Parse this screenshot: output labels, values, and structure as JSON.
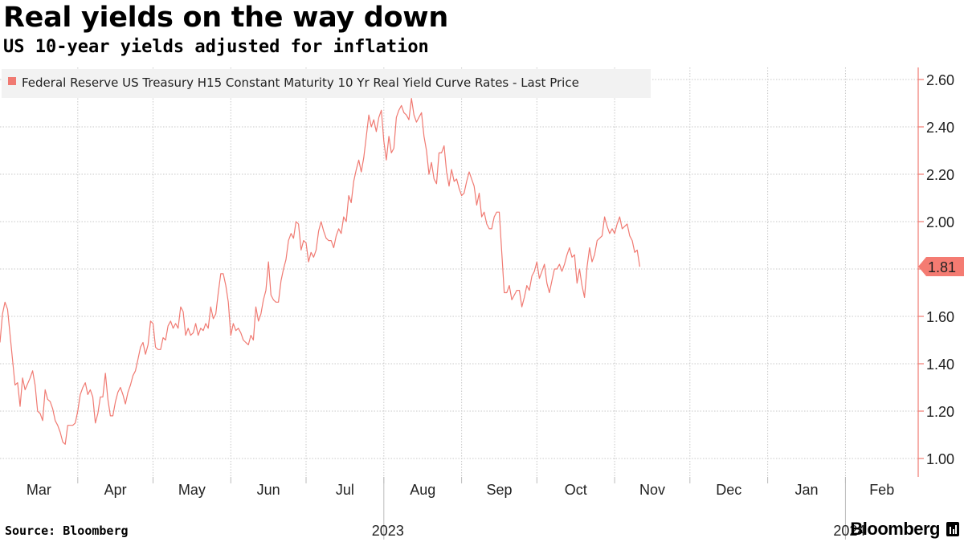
{
  "header": {
    "title": "Real yields on the way down",
    "subtitle": "US 10-year yields adjusted for inflation"
  },
  "footer": {
    "source": "Source: Bloomberg",
    "brand": "Bloomberg"
  },
  "colors": {
    "series": "#f07a72",
    "legend_bg": "#f2f2f2",
    "grid": "#c8c8c8",
    "last_badge": "#f47b72"
  },
  "chart_data": {
    "type": "line",
    "title": "Real yields on the way down",
    "subtitle": "US 10-year yields adjusted for inflation",
    "xlabel": "",
    "ylabel": "",
    "ylim": [
      0.95,
      2.65
    ],
    "grid": true,
    "legend": "top-left",
    "y_axis_side": "right",
    "y_ticks": [
      1.0,
      1.2,
      1.4,
      1.6,
      1.8,
      2.0,
      2.2,
      2.4,
      2.6
    ],
    "y_tick_labels": [
      "1.00",
      "1.20",
      "1.40",
      "1.60",
      "1.80",
      "2.00",
      "2.20",
      "2.40",
      "2.60"
    ],
    "x_months": [
      {
        "label": "Mar",
        "day": 0
      },
      {
        "label": "Apr",
        "day": 31
      },
      {
        "label": "May",
        "day": 61
      },
      {
        "label": "Jun",
        "day": 92
      },
      {
        "label": "Jul",
        "day": 122
      },
      {
        "label": "Aug",
        "day": 153
      },
      {
        "label": "Sep",
        "day": 184
      },
      {
        "label": "Oct",
        "day": 214
      },
      {
        "label": "Nov",
        "day": 245
      },
      {
        "label": "Dec",
        "day": 275
      },
      {
        "label": "Jan",
        "day": 306
      },
      {
        "label": "Feb",
        "day": 337
      }
    ],
    "x_years": [
      {
        "label": "2023",
        "day": 153
      },
      {
        "label": "2024",
        "day": 337
      }
    ],
    "x_day_range": [
      0,
      366
    ],
    "last_value_label": "1.81",
    "series": [
      {
        "name": "Federal Reserve US Treasury H15 Constant Maturity 10 Yr Real Yield Curve Rates - Last Price",
        "points": [
          [
            0,
            1.49
          ],
          [
            1,
            1.61
          ],
          [
            2,
            1.66
          ],
          [
            3,
            1.63
          ],
          [
            6,
            1.31
          ],
          [
            7,
            1.32
          ],
          [
            8,
            1.22
          ],
          [
            9,
            1.34
          ],
          [
            10,
            1.29
          ],
          [
            12,
            1.34
          ],
          [
            13,
            1.37
          ],
          [
            14,
            1.31
          ],
          [
            15,
            1.2
          ],
          [
            16,
            1.19
          ],
          [
            17,
            1.16
          ],
          [
            18,
            1.29
          ],
          [
            19,
            1.25
          ],
          [
            20,
            1.24
          ],
          [
            21,
            1.21
          ],
          [
            22,
            1.16
          ],
          [
            23,
            1.14
          ],
          [
            24,
            1.11
          ],
          [
            25,
            1.07
          ],
          [
            26,
            1.06
          ],
          [
            27,
            1.14
          ],
          [
            28,
            1.14
          ],
          [
            29,
            1.14
          ],
          [
            30,
            1.15
          ],
          [
            31,
            1.2
          ],
          [
            32,
            1.27
          ],
          [
            33,
            1.3
          ],
          [
            34,
            1.32
          ],
          [
            35,
            1.27
          ],
          [
            36,
            1.29
          ],
          [
            37,
            1.26
          ],
          [
            38,
            1.15
          ],
          [
            39,
            1.19
          ],
          [
            40,
            1.26
          ],
          [
            41,
            1.26
          ],
          [
            42,
            1.36
          ],
          [
            43,
            1.25
          ],
          [
            44,
            1.18
          ],
          [
            45,
            1.18
          ],
          [
            46,
            1.24
          ],
          [
            47,
            1.28
          ],
          [
            48,
            1.3
          ],
          [
            49,
            1.27
          ],
          [
            50,
            1.23
          ],
          [
            51,
            1.28
          ],
          [
            52,
            1.31
          ],
          [
            53,
            1.35
          ],
          [
            54,
            1.37
          ],
          [
            55,
            1.42
          ],
          [
            56,
            1.47
          ],
          [
            57,
            1.49
          ],
          [
            58,
            1.44
          ],
          [
            59,
            1.48
          ],
          [
            60,
            1.58
          ],
          [
            61,
            1.57
          ],
          [
            62,
            1.47
          ],
          [
            63,
            1.46
          ],
          [
            64,
            1.46
          ],
          [
            65,
            1.51
          ],
          [
            66,
            1.5
          ],
          [
            67,
            1.56
          ],
          [
            68,
            1.58
          ],
          [
            69,
            1.55
          ],
          [
            70,
            1.57
          ],
          [
            71,
            1.55
          ],
          [
            72,
            1.64
          ],
          [
            73,
            1.62
          ],
          [
            74,
            1.52
          ],
          [
            75,
            1.55
          ],
          [
            76,
            1.52
          ],
          [
            77,
            1.53
          ],
          [
            78,
            1.57
          ],
          [
            79,
            1.52
          ],
          [
            80,
            1.55
          ],
          [
            81,
            1.54
          ],
          [
            82,
            1.57
          ],
          [
            83,
            1.55
          ],
          [
            84,
            1.64
          ],
          [
            85,
            1.59
          ],
          [
            86,
            1.61
          ],
          [
            87,
            1.7
          ],
          [
            88,
            1.78
          ],
          [
            89,
            1.78
          ],
          [
            90,
            1.73
          ],
          [
            91,
            1.66
          ],
          [
            92,
            1.52
          ],
          [
            93,
            1.57
          ],
          [
            94,
            1.54
          ],
          [
            95,
            1.55
          ],
          [
            96,
            1.53
          ],
          [
            97,
            1.5
          ],
          [
            98,
            1.49
          ],
          [
            99,
            1.48
          ],
          [
            100,
            1.52
          ],
          [
            101,
            1.5
          ],
          [
            102,
            1.64
          ],
          [
            103,
            1.58
          ],
          [
            104,
            1.61
          ],
          [
            105,
            1.67
          ],
          [
            106,
            1.71
          ],
          [
            107,
            1.83
          ],
          [
            108,
            1.69
          ],
          [
            109,
            1.67
          ],
          [
            110,
            1.66
          ],
          [
            111,
            1.66
          ],
          [
            112,
            1.75
          ],
          [
            113,
            1.8
          ],
          [
            114,
            1.84
          ],
          [
            115,
            1.92
          ],
          [
            116,
            1.95
          ],
          [
            117,
            1.93
          ],
          [
            118,
            2.0
          ],
          [
            119,
            1.99
          ],
          [
            120,
            1.88
          ],
          [
            121,
            1.92
          ],
          [
            122,
            1.91
          ],
          [
            123,
            1.83
          ],
          [
            124,
            1.87
          ],
          [
            125,
            1.85
          ],
          [
            126,
            1.88
          ],
          [
            127,
            1.96
          ],
          [
            128,
            2.0
          ],
          [
            129,
            1.96
          ],
          [
            130,
            1.93
          ],
          [
            131,
            1.92
          ],
          [
            132,
            1.92
          ],
          [
            133,
            1.89
          ],
          [
            134,
            1.94
          ],
          [
            135,
            1.97
          ],
          [
            136,
            1.95
          ],
          [
            137,
            2.02
          ],
          [
            138,
            2.0
          ],
          [
            139,
            2.11
          ],
          [
            140,
            2.08
          ],
          [
            141,
            2.17
          ],
          [
            142,
            2.22
          ],
          [
            143,
            2.26
          ],
          [
            144,
            2.21
          ],
          [
            145,
            2.27
          ],
          [
            146,
            2.36
          ],
          [
            147,
            2.45
          ],
          [
            148,
            2.4
          ],
          [
            149,
            2.43
          ],
          [
            150,
            2.38
          ],
          [
            151,
            2.44
          ],
          [
            152,
            2.47
          ],
          [
            153,
            2.34
          ],
          [
            154,
            2.26
          ],
          [
            155,
            2.36
          ],
          [
            156,
            2.29
          ],
          [
            157,
            2.31
          ],
          [
            158,
            2.44
          ],
          [
            159,
            2.47
          ],
          [
            160,
            2.49
          ],
          [
            161,
            2.46
          ],
          [
            162,
            2.45
          ],
          [
            163,
            2.43
          ],
          [
            164,
            2.52
          ],
          [
            165,
            2.45
          ],
          [
            166,
            2.42
          ],
          [
            167,
            2.44
          ],
          [
            168,
            2.46
          ],
          [
            169,
            2.36
          ],
          [
            170,
            2.3
          ],
          [
            171,
            2.2
          ],
          [
            172,
            2.25
          ],
          [
            173,
            2.18
          ],
          [
            174,
            2.16
          ],
          [
            175,
            2.29
          ],
          [
            176,
            2.29
          ],
          [
            177,
            2.32
          ],
          [
            178,
            2.21
          ],
          [
            179,
            2.15
          ],
          [
            180,
            2.22
          ],
          [
            181,
            2.17
          ],
          [
            182,
            2.18
          ],
          [
            183,
            2.14
          ],
          [
            184,
            2.11
          ],
          [
            185,
            2.12
          ],
          [
            186,
            2.17
          ],
          [
            187,
            2.21
          ],
          [
            188,
            2.18
          ],
          [
            189,
            2.15
          ],
          [
            190,
            2.07
          ],
          [
            191,
            2.12
          ],
          [
            192,
            2.02
          ],
          [
            193,
            2.04
          ],
          [
            194,
            1.99
          ],
          [
            195,
            1.97
          ],
          [
            196,
            1.97
          ],
          [
            197,
            2.02
          ],
          [
            198,
            2.04
          ],
          [
            199,
            2.04
          ],
          [
            200,
            1.87
          ],
          [
            201,
            1.7
          ],
          [
            202,
            1.7
          ],
          [
            203,
            1.73
          ],
          [
            204,
            1.67
          ],
          [
            205,
            1.69
          ],
          [
            206,
            1.71
          ],
          [
            207,
            1.71
          ],
          [
            208,
            1.64
          ],
          [
            209,
            1.68
          ],
          [
            210,
            1.73
          ],
          [
            211,
            1.71
          ],
          [
            212,
            1.77
          ],
          [
            213,
            1.79
          ],
          [
            214,
            1.83
          ],
          [
            215,
            1.76
          ],
          [
            216,
            1.79
          ],
          [
            217,
            1.82
          ],
          [
            218,
            1.74
          ],
          [
            219,
            1.7
          ],
          [
            220,
            1.75
          ],
          [
            221,
            1.8
          ],
          [
            222,
            1.8
          ],
          [
            223,
            1.82
          ],
          [
            224,
            1.79
          ],
          [
            225,
            1.82
          ],
          [
            226,
            1.86
          ],
          [
            227,
            1.89
          ],
          [
            228,
            1.85
          ],
          [
            229,
            1.86
          ],
          [
            230,
            1.74
          ],
          [
            231,
            1.8
          ],
          [
            232,
            1.73
          ],
          [
            233,
            1.68
          ],
          [
            234,
            1.81
          ],
          [
            235,
            1.89
          ],
          [
            236,
            1.83
          ],
          [
            237,
            1.86
          ],
          [
            238,
            1.92
          ],
          [
            239,
            1.93
          ],
          [
            240,
            1.94
          ],
          [
            241,
            2.02
          ],
          [
            242,
            1.98
          ],
          [
            243,
            1.95
          ],
          [
            244,
            1.97
          ],
          [
            245,
            1.95
          ],
          [
            246,
            1.99
          ],
          [
            247,
            2.02
          ],
          [
            248,
            1.97
          ],
          [
            249,
            1.98
          ],
          [
            250,
            1.99
          ],
          [
            251,
            1.94
          ],
          [
            252,
            1.92
          ],
          [
            253,
            1.87
          ],
          [
            254,
            1.88
          ],
          [
            255,
            1.81
          ]
        ]
      }
    ]
  }
}
